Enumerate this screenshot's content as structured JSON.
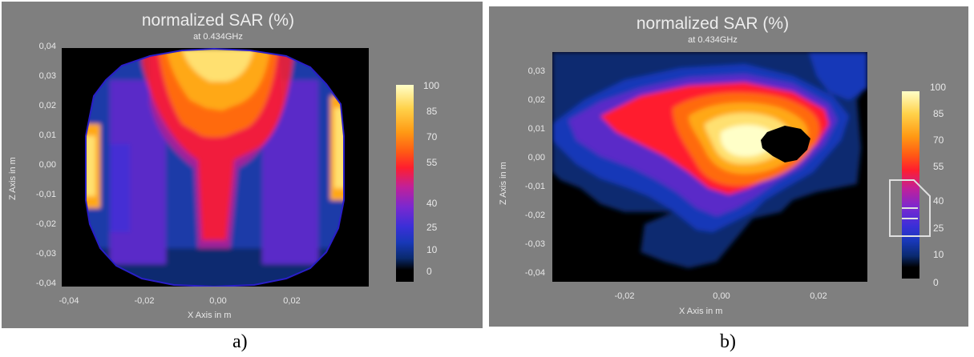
{
  "captions": {
    "a": "a)",
    "b": "b)"
  },
  "colors": {
    "panel_bg": "#7f7f7f",
    "plot_bg": "#000000",
    "colormap": [
      "#000000",
      "#0a2a6e",
      "#1838b8",
      "#3a2fd8",
      "#7a28d0",
      "#c0209a",
      "#ff1e2e",
      "#ff5a14",
      "#ff9a14",
      "#ffd24a",
      "#ffffc8"
    ]
  },
  "chart_data": [
    {
      "type": "heatmap",
      "title": "normalized SAR (%)",
      "subtitle": "at 0.434GHz",
      "xlabel": "X Axis in m",
      "ylabel": "Z Axis in m",
      "xlim": [
        -0.045,
        0.04
      ],
      "ylim": [
        -0.042,
        0.04
      ],
      "x_ticks": [
        "-0,04",
        "-0,02",
        "0,00",
        "0,02"
      ],
      "y_ticks": [
        "0,04",
        "0,03",
        "0,02",
        "0,01",
        "0,00",
        "-0,01",
        "-0,02",
        "-0,03",
        "-0,04"
      ],
      "colorbar": {
        "ticks": [
          "100",
          "85",
          "70",
          "55",
          "40",
          "25",
          "10",
          "0"
        ],
        "range": [
          0,
          100
        ]
      },
      "features": [
        {
          "shape": "circular phantom cross-section",
          "center_x": 0.0,
          "center_z": 0.0,
          "radius": 0.039
        },
        {
          "shape": "hotspot top center",
          "x": 0.0,
          "z": 0.033,
          "value": 100
        },
        {
          "shape": "hotspot left edge",
          "x": -0.037,
          "z": 0.0,
          "value": 95
        },
        {
          "shape": "hotspot right edge",
          "x": 0.036,
          "z": 0.005,
          "value": 100
        },
        {
          "shape": "central vertical band",
          "x": 0.0,
          "z": -0.005,
          "value": 55
        }
      ]
    },
    {
      "type": "heatmap",
      "title": "normalized SAR (%)",
      "subtitle": "at 0.434GHz",
      "xlabel": "X Axis in m",
      "ylabel": "Z Axis in m",
      "xlim": [
        -0.035,
        0.03
      ],
      "ylim": [
        -0.045,
        0.035
      ],
      "x_ticks": [
        "-0,02",
        "0,00",
        "0,02"
      ],
      "y_ticks": [
        "0,03",
        "0,02",
        "0,01",
        "0,00",
        "-0,01",
        "-0,02",
        "-0,03",
        "-0,04"
      ],
      "colorbar": {
        "ticks": [
          "100",
          "85",
          "70",
          "55",
          "40",
          "25",
          "10",
          "0"
        ],
        "range": [
          0,
          100
        ]
      },
      "features": [
        {
          "shape": "hotspot center-right",
          "x": 0.005,
          "z": 0.008,
          "value": 100
        },
        {
          "shape": "cavity (zero SAR)",
          "x": 0.012,
          "z": 0.004,
          "value": 0
        },
        {
          "shape": "irregular head section",
          "x": 0.0,
          "z": 0.0,
          "value": 40
        }
      ]
    }
  ]
}
